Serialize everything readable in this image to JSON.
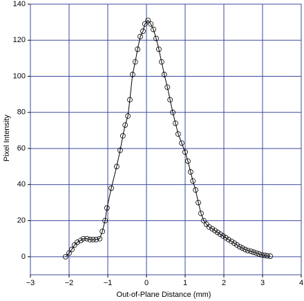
{
  "chart_data": {
    "type": "line",
    "xlabel": "Out-of-Plane Distance (mm)",
    "ylabel": "Pixel Intensity",
    "xlim": [
      -3,
      4
    ],
    "ylim": [
      -10,
      140
    ],
    "xticks": [
      {
        "value": -3,
        "label": "−3"
      },
      {
        "value": -2,
        "label": "−2"
      },
      {
        "value": -1,
        "label": "−1"
      },
      0,
      1,
      2,
      3,
      4
    ],
    "yticks": [
      0,
      20,
      40,
      60,
      80,
      100,
      120,
      140
    ],
    "grid": true,
    "grid_color": "#3a4a9c",
    "x": [
      -2.09,
      -2.0,
      -1.93,
      -1.86,
      -1.79,
      -1.7,
      -1.63,
      -1.54,
      -1.46,
      -1.38,
      -1.3,
      -1.21,
      -1.14,
      -1.07,
      -1.02,
      -0.91,
      -0.77,
      -0.68,
      -0.61,
      -0.55,
      -0.48,
      -0.43,
      -0.36,
      -0.29,
      -0.23,
      -0.16,
      -0.09,
      -0.04,
      0.04,
      0.11,
      0.18,
      0.25,
      0.32,
      0.39,
      0.46,
      0.54,
      0.61,
      0.68,
      0.75,
      0.82,
      0.91,
      1.0,
      1.07,
      1.14,
      1.2,
      1.27,
      1.34,
      1.41,
      1.48,
      1.55,
      1.62,
      1.7,
      1.77,
      1.84,
      1.91,
      1.98,
      2.05,
      2.12,
      2.2,
      2.27,
      2.34,
      2.41,
      2.48,
      2.55,
      2.62,
      2.7,
      2.77,
      2.84,
      2.91,
      2.98,
      3.05,
      3.12,
      3.2
    ],
    "series": [
      {
        "color": "#000000",
        "values": [
          0,
          2,
          4,
          6.5,
          8,
          9,
          10,
          10,
          9.5,
          9.5,
          9.5,
          10,
          14,
          20,
          27,
          38,
          50,
          59,
          67,
          73,
          78,
          87,
          101,
          108,
          115,
          122,
          125,
          129,
          131,
          129,
          126,
          121,
          115,
          108,
          101,
          94,
          87,
          80,
          74,
          68,
          63,
          58,
          53,
          47,
          42,
          37,
          30,
          24,
          20,
          18,
          16.5,
          15.5,
          14.5,
          13.5,
          12.5,
          11.5,
          10.5,
          9.5,
          8.5,
          7.5,
          6.5,
          5.5,
          4.8,
          4,
          3.4,
          3,
          2.5,
          2,
          1.5,
          1,
          0.8,
          0.5,
          0.3
        ]
      }
    ]
  }
}
